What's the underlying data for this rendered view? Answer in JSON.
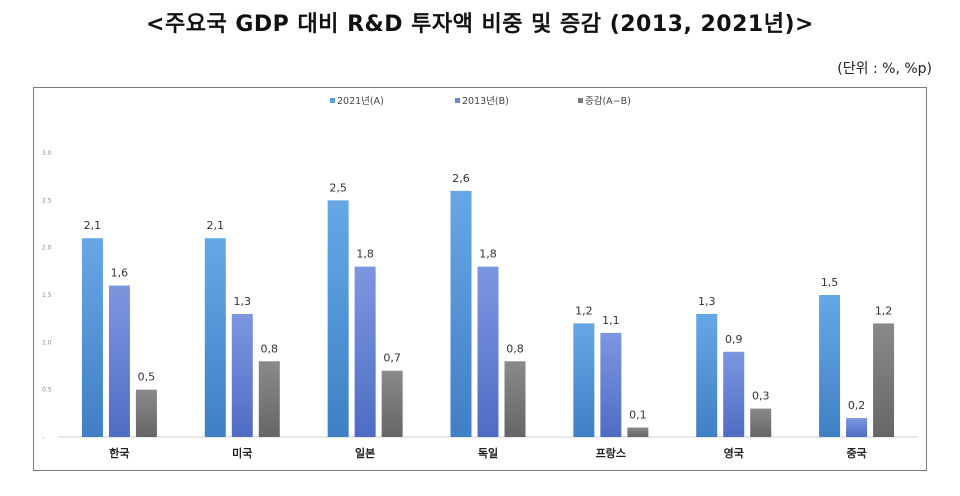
{
  "title": "<주요국 GDP 대비 R&D 투자액 비중 및 증감 (2013, 2021년)>",
  "unit": "(단위 : %, %p)",
  "chart_data": {
    "type": "bar",
    "categories": [
      "한국",
      "미국",
      "일본",
      "독일",
      "프랑스",
      "영국",
      "중국"
    ],
    "series": [
      {
        "name": "2021년(A)",
        "values": [
          2.1,
          2.1,
          2.5,
          2.6,
          1.2,
          1.3,
          1.5
        ],
        "labels": [
          "2,1",
          "2,1",
          "2,5",
          "2,6",
          "1,2",
          "1,3",
          "1,5"
        ],
        "color": "#5a9bdc"
      },
      {
        "name": "2013년(B)",
        "values": [
          1.6,
          1.3,
          1.8,
          1.8,
          1.1,
          0.9,
          0.2
        ],
        "labels": [
          "1,6",
          "1,3",
          "1,8",
          "1,8",
          "1,1",
          "0,9",
          "0,2"
        ],
        "color": "#6a86d6"
      },
      {
        "name": "증감(A−B)",
        "values": [
          0.5,
          0.8,
          0.7,
          0.8,
          0.1,
          0.3,
          1.2
        ],
        "labels": [
          "0,5",
          "0,8",
          "0,7",
          "0,8",
          "0,1",
          "0,3",
          "1,2"
        ],
        "color": "#7a7a7a"
      }
    ],
    "yticks": [
      "-",
      "0.5",
      "1.0",
      "1.5",
      "2.0",
      "2.5",
      "3.0"
    ],
    "ylim": [
      0,
      3.0
    ],
    "grid": false,
    "legend": "top"
  }
}
